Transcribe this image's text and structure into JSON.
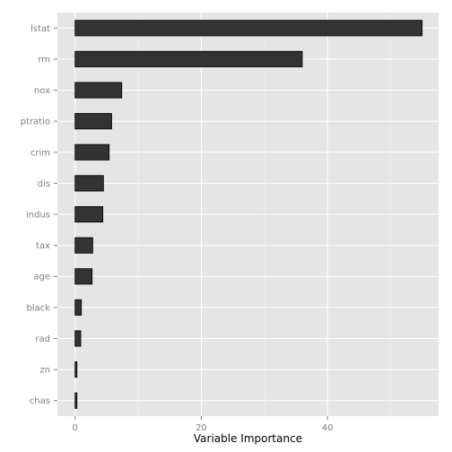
{
  "chart_data": {
    "type": "bar",
    "orientation": "horizontal",
    "xlabel": "Variable Importance",
    "ylabel": "",
    "title": "",
    "categories": [
      "lstat",
      "rm",
      "nox",
      "ptratio",
      "crim",
      "dis",
      "indus",
      "tax",
      "age",
      "black",
      "rad",
      "zn",
      "chas"
    ],
    "values": [
      55.0,
      36.0,
      7.4,
      5.8,
      5.4,
      4.5,
      4.4,
      2.8,
      2.7,
      1.0,
      0.9,
      0.3,
      0.3
    ],
    "xlim": [
      -2.8,
      57.6
    ],
    "xticks": [
      0,
      20,
      40
    ],
    "tick_labels": [
      "0",
      "20",
      "40"
    ],
    "grid": true,
    "panel_background": "#e5e5e5",
    "grid_color": "#ffffff",
    "bar_fill": "#333333",
    "bar_stroke": "#000000"
  }
}
